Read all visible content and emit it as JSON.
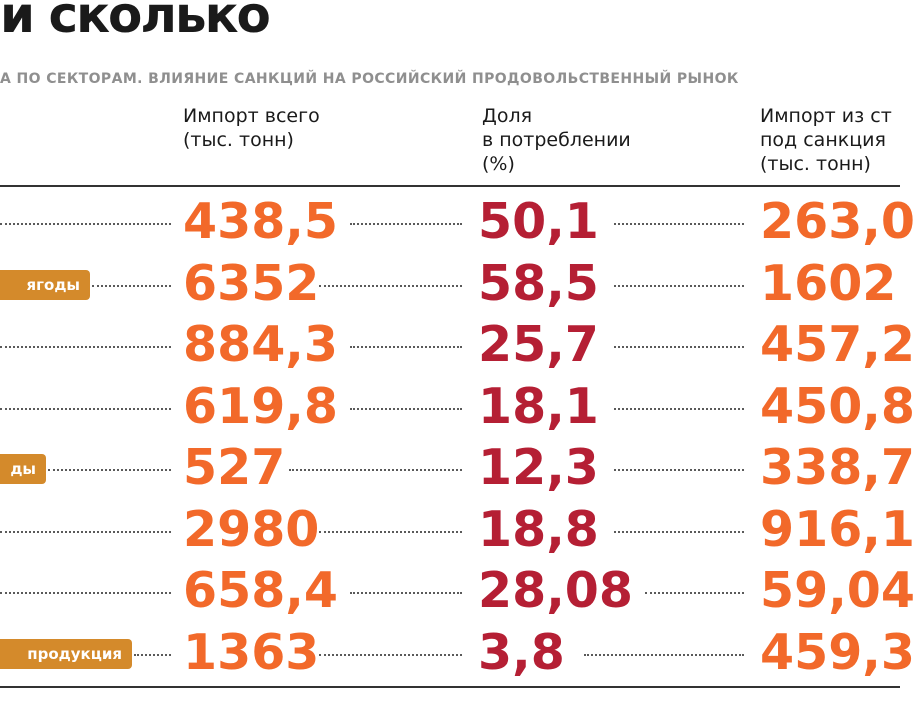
{
  "title": "и сколько",
  "subtitle": "а по секторам. влияние санкций на российский продовольственный рынок",
  "colors": {
    "accent_orange": "#f2692a",
    "accent_crimson": "#b51f34",
    "label_bg": "#d48a2b"
  },
  "columns": [
    {
      "label": "Импорт всего\n(тыс. тонн)"
    },
    {
      "label": "Доля\nв потреблении\n(%)"
    },
    {
      "label": "Импорт из ст\nпод санкция\n(тыс. тонн)"
    }
  ],
  "chart_data": {
    "type": "table",
    "columns": [
      "Импорт всего (тыс. тонн)",
      "Доля в потреблении (%)",
      "Импорт из ст под санкция (тыс. тонн)"
    ],
    "rows": [
      {
        "label": "",
        "values": [
          "438,5",
          "50,1",
          "263,0"
        ]
      },
      {
        "label": "ягоды",
        "values": [
          "6352",
          "58,5",
          "1602"
        ]
      },
      {
        "label": "",
        "values": [
          "884,3",
          "25,7",
          "457,2"
        ]
      },
      {
        "label": "",
        "values": [
          "619,8",
          "18,1",
          "450,8"
        ]
      },
      {
        "label": "ды",
        "values": [
          "527",
          "12,3",
          "338,7"
        ]
      },
      {
        "label": "",
        "values": [
          "2980",
          "18,8",
          "916,1"
        ]
      },
      {
        "label": "",
        "values": [
          "658,4",
          "28,08",
          "59,04"
        ]
      },
      {
        "label": "продукция",
        "values": [
          "1363",
          "3,8",
          "459,3"
        ]
      }
    ]
  }
}
